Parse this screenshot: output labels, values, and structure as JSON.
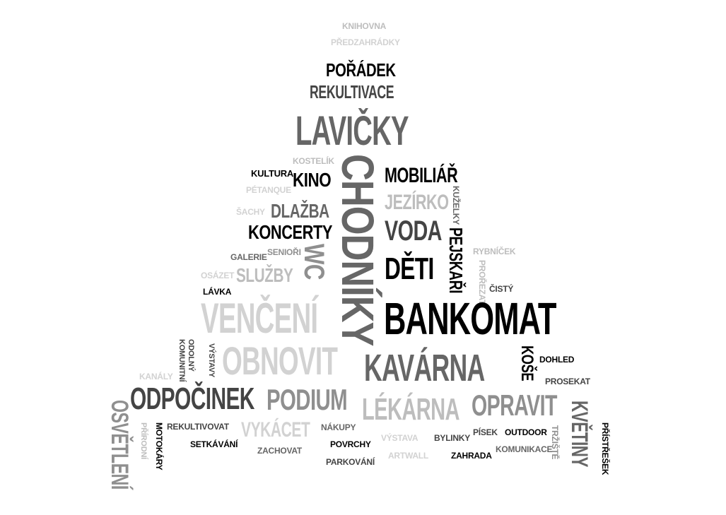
{
  "words": {
    "knihovna": "KNIHOVNA",
    "predzahradky": "PŘEDZAHRÁDKY",
    "poradek": "POŘÁDEK",
    "rekultivace": "REKULTIVACE",
    "lavicky": "LAVIČKY",
    "chodniky": "CHODNÍKY",
    "kostelik": "KOSTELÍK",
    "kultura": "KULTURA",
    "kino": "KINO",
    "mobiliar": "MOBILIÁŘ",
    "petanque": "PÉTANQUE",
    "jezirko": "JEZÍRKO",
    "kuzelky": "KUŽELKY",
    "sachy": "ŠACHY",
    "dlazba": "DLAŽBA",
    "voda": "VODA",
    "koncerty": "KONCERTY",
    "pejskari": "PEJSKAŘI",
    "galerie": "GALERIE",
    "seniori": "SENIOŘI",
    "wc": "WC",
    "rybnicek": "RYBNÍČEK",
    "deti": "DĚTI",
    "osazet": "OSÁZET",
    "sluzby": "SLUŽBY",
    "prorezat": "PROŘEZAT",
    "cisty": "ČISTÝ",
    "lavka": "LÁVKA",
    "venceni": "VENČENÍ",
    "bankomat": "BANKOMAT",
    "odolny": "ODOLNÝ",
    "komunitni": "KOMUNITNÍ",
    "vystavy": "VÝSTAVY",
    "obnovit": "OBNOVIT",
    "kavarna": "KAVÁRNA",
    "kose": "KOŠE",
    "dohled": "DOHLED",
    "prosekat": "PROSEKAT",
    "kanaly": "KANÁLY",
    "odpocinek": "ODPOČINEK",
    "podium": "PODIUM",
    "lekarna": "LÉKÁRNA",
    "opravit": "OPRAVIT",
    "kvetiny": "KVĚTINY",
    "osvetleni": "OSVĚTLENÍ",
    "prirodni": "PŘÍRODNÍ",
    "motokary": "MOTOKÁRY",
    "rekultivovat": "REKULTIVOVAT",
    "vykacet": "VYKÁCET",
    "nakupy": "NÁKUPY",
    "vystava": "VÝSTAVA",
    "bylinky": "BYLINKY",
    "pisek": "PÍSEK",
    "outdoor": "OUTDOOR",
    "trziste": "TRŽIŠTĚ",
    "pristresek": "PŘÍSTŘEŠEK",
    "setkavani": "SETKÁVÁNÍ",
    "zachovat": "ZACHOVAT",
    "povrchy": "POVRCHY",
    "artwall": "ARTWALL",
    "zahrada": "ZAHRADA",
    "komunikace": "KOMUNIKACE",
    "parkovani": "PARKOVÁNÍ"
  },
  "colors": {
    "black": "#000000",
    "dark": "#444444",
    "mid": "#666666",
    "gray": "#8f8f8f",
    "light": "#bdbdbd",
    "pale": "#d2d2d2"
  }
}
